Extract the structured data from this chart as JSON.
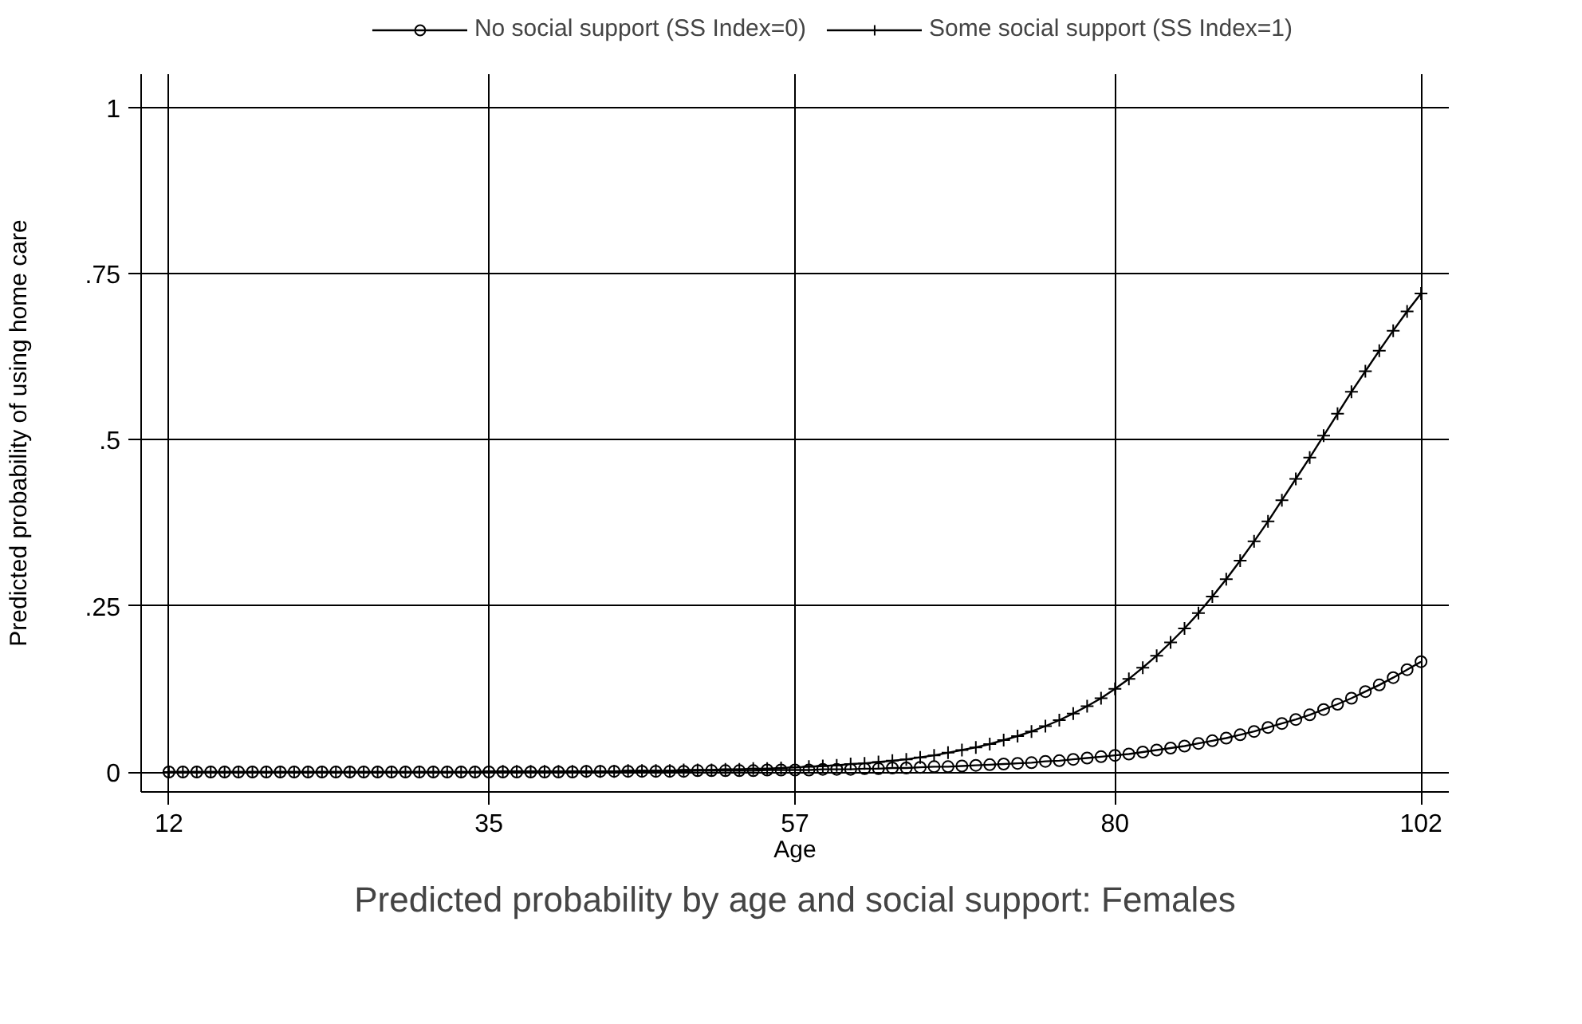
{
  "chart_data": {
    "type": "line",
    "title": "Predicted probability by age and social support: Females",
    "xlabel": "Age",
    "ylabel": "Predicted probability of using home care",
    "x": [
      12,
      13,
      14,
      15,
      16,
      17,
      18,
      19,
      20,
      21,
      22,
      23,
      24,
      25,
      26,
      27,
      28,
      29,
      30,
      31,
      32,
      33,
      34,
      35,
      36,
      37,
      38,
      39,
      40,
      41,
      42,
      43,
      44,
      45,
      46,
      47,
      48,
      49,
      50,
      51,
      52,
      53,
      54,
      55,
      56,
      57,
      58,
      59,
      60,
      61,
      62,
      63,
      64,
      65,
      66,
      67,
      68,
      69,
      70,
      71,
      72,
      73,
      74,
      75,
      76,
      77,
      78,
      79,
      80,
      81,
      82,
      83,
      84,
      85,
      86,
      87,
      88,
      89,
      90,
      91,
      92,
      93,
      94,
      95,
      96,
      97,
      98,
      99,
      100,
      101,
      102
    ],
    "series": [
      {
        "name": "No social support (SS Index=0)",
        "color": "#000000",
        "marker": "circle",
        "values": [
          0,
          0,
          0,
          0,
          0,
          0,
          0,
          0,
          0,
          0,
          0,
          0,
          0,
          0,
          0,
          0,
          0,
          0,
          0,
          0,
          0,
          0,
          0,
          0,
          0,
          0,
          0,
          0,
          0,
          0,
          0.001,
          0.001,
          0.001,
          0.001,
          0.001,
          0.001,
          0.001,
          0.001,
          0.002,
          0.002,
          0.002,
          0.002,
          0.002,
          0.003,
          0.003,
          0.003,
          0.003,
          0.004,
          0.004,
          0.004,
          0.005,
          0.005,
          0.006,
          0.006,
          0.007,
          0.008,
          0.008,
          0.009,
          0.01,
          0.011,
          0.012,
          0.013,
          0.014,
          0.016,
          0.017,
          0.019,
          0.021,
          0.023,
          0.025,
          0.027,
          0.03,
          0.033,
          0.036,
          0.039,
          0.043,
          0.047,
          0.051,
          0.056,
          0.061,
          0.067,
          0.073,
          0.079,
          0.086,
          0.094,
          0.102,
          0.111,
          0.121,
          0.131,
          0.142,
          0.154,
          0.166
        ]
      },
      {
        "name": "Some social support (SS Index=1)",
        "color": "#000000",
        "marker": "cross",
        "values": [
          0,
          0,
          0,
          0,
          0,
          0,
          0,
          0,
          0,
          0,
          0,
          0,
          0,
          0,
          0,
          0,
          0,
          0,
          0,
          0,
          0,
          0,
          0,
          0.001,
          0.001,
          0.001,
          0.001,
          0.001,
          0.001,
          0.001,
          0.001,
          0.001,
          0.001,
          0.002,
          0.002,
          0.002,
          0.002,
          0.003,
          0.003,
          0.003,
          0.004,
          0.004,
          0.005,
          0.005,
          0.006,
          0.007,
          0.008,
          0.009,
          0.01,
          0.012,
          0.013,
          0.015,
          0.017,
          0.019,
          0.022,
          0.025,
          0.029,
          0.033,
          0.037,
          0.042,
          0.048,
          0.054,
          0.061,
          0.069,
          0.078,
          0.088,
          0.099,
          0.111,
          0.125,
          0.14,
          0.157,
          0.175,
          0.195,
          0.216,
          0.239,
          0.264,
          0.29,
          0.318,
          0.347,
          0.377,
          0.409,
          0.441,
          0.473,
          0.506,
          0.539,
          0.572,
          0.603,
          0.634,
          0.664,
          0.693,
          0.72
        ]
      }
    ],
    "xlim": [
      10,
      104
    ],
    "ylim": [
      -0.03,
      1.05
    ],
    "xticks": [
      12,
      35,
      57,
      80,
      102
    ],
    "yticks": [
      0,
      {
        "value": 0.25,
        "label": ".25"
      },
      {
        "value": 0.5,
        "label": ".5"
      },
      {
        "value": 0.75,
        "label": ".75"
      },
      1
    ],
    "grid": true,
    "legend": "top",
    "line_style": "solid"
  }
}
